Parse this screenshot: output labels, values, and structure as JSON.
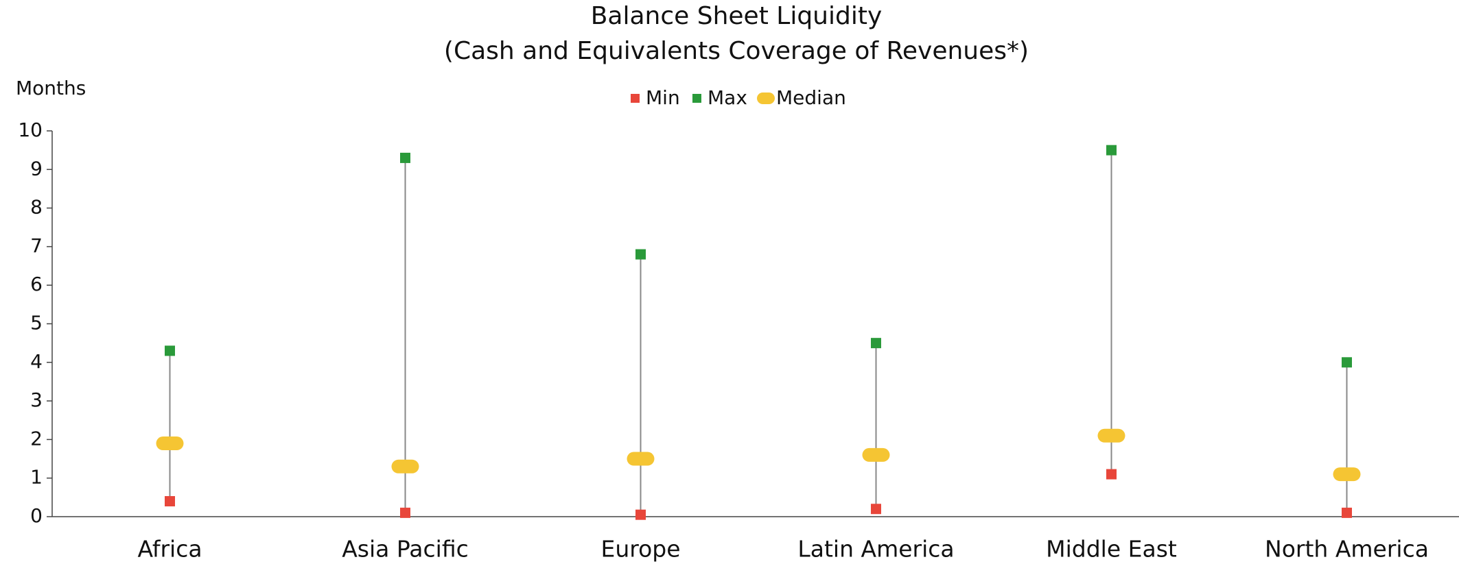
{
  "chart_data": {
    "type": "range",
    "title": "Balance Sheet Liquidity",
    "subtitle": "(Cash and Equivalents Coverage of Revenues*)",
    "y_label": "Months",
    "categories": [
      "Africa",
      "Asia Pacific",
      "Europe",
      "Latin America",
      "Middle East",
      "North America"
    ],
    "series": [
      {
        "name": "Min",
        "color": "#e8463a",
        "values": [
          0.4,
          0.1,
          0.05,
          0.2,
          1.1,
          0.1
        ]
      },
      {
        "name": "Max",
        "color": "#2a9a3a",
        "values": [
          4.3,
          9.3,
          6.8,
          4.5,
          9.5,
          4.0
        ]
      },
      {
        "name": "Median",
        "color": "#f5c533",
        "values": [
          1.9,
          1.3,
          1.5,
          1.6,
          2.1,
          1.1
        ]
      }
    ],
    "ylim": [
      0,
      10
    ],
    "yticks": [
      0,
      1,
      2,
      3,
      4,
      5,
      6,
      7,
      8,
      9,
      10
    ],
    "grid": false,
    "legend": "top"
  }
}
